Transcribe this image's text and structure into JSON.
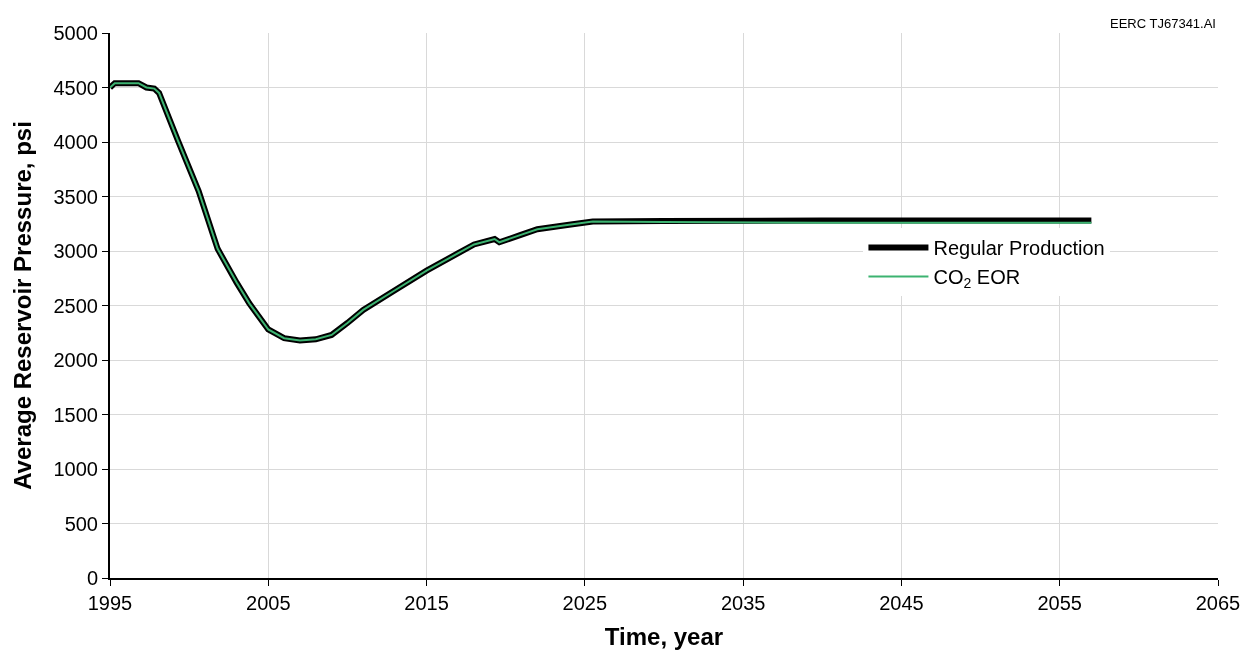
{
  "chart_data": {
    "type": "line",
    "xlabel": "Time, year",
    "ylabel": "Average Reservoir Pressure, psi",
    "annotations": [
      "EERC TJ67341.AI"
    ],
    "xlim": [
      1995,
      2065
    ],
    "xticks": [
      1995,
      2005,
      2015,
      2025,
      2035,
      2045,
      2055,
      2065
    ],
    "ylim": [
      0,
      5000
    ],
    "yticks": [
      0,
      500,
      1000,
      1500,
      2000,
      2500,
      3000,
      3500,
      4000,
      4500,
      5000
    ],
    "grid": true,
    "legend": "right",
    "marker": "none",
    "line_style": "solid",
    "series": [
      {
        "name": "Regular Production",
        "color": "#000000",
        "x": [
          1995,
          1995.3,
          1996.8,
          1997.3,
          1997.8,
          1998.1,
          1999.3,
          2000.6,
          2001.8,
          2003.0,
          2003.8,
          2005.0,
          2006.0,
          2007.0,
          2008.0,
          2009.0,
          2010.0,
          2011.0,
          2013.0,
          2015.0,
          2017.0,
          2018.0,
          2019.3,
          2019.6,
          2021.0,
          2022.0,
          2024.0,
          2025.5,
          2030,
          2040,
          2057
        ],
        "values": [
          4500,
          4540,
          4540,
          4500,
          4490,
          4450,
          4010,
          3550,
          3020,
          2710,
          2520,
          2280,
          2200,
          2180,
          2190,
          2230,
          2340,
          2460,
          2640,
          2820,
          2980,
          3060,
          3110,
          3080,
          3150,
          3200,
          3240,
          3270,
          3275,
          3280,
          3280
        ]
      },
      {
        "name": "CO$_{2}$ EOR",
        "color": "#3cb371",
        "x": [
          1995,
          1995.3,
          1996.8,
          1997.3,
          1997.8,
          1998.1,
          1999.3,
          2000.6,
          2001.8,
          2003.0,
          2003.8,
          2005.0,
          2006.0,
          2007.0,
          2008.0,
          2009.0,
          2010.0,
          2011.0,
          2013.0,
          2015.0,
          2017.0,
          2018.0,
          2019.3,
          2019.6,
          2021.0,
          2022.0,
          2024.0,
          2025.5,
          2030,
          2040,
          2057
        ],
        "values": [
          4500,
          4540,
          4540,
          4500,
          4490,
          4450,
          4010,
          3550,
          3020,
          2710,
          2520,
          2280,
          2200,
          2180,
          2190,
          2230,
          2340,
          2460,
          2640,
          2820,
          2980,
          3060,
          3110,
          3080,
          3150,
          3200,
          3240,
          3270,
          3265,
          3260,
          3260
        ]
      }
    ]
  }
}
